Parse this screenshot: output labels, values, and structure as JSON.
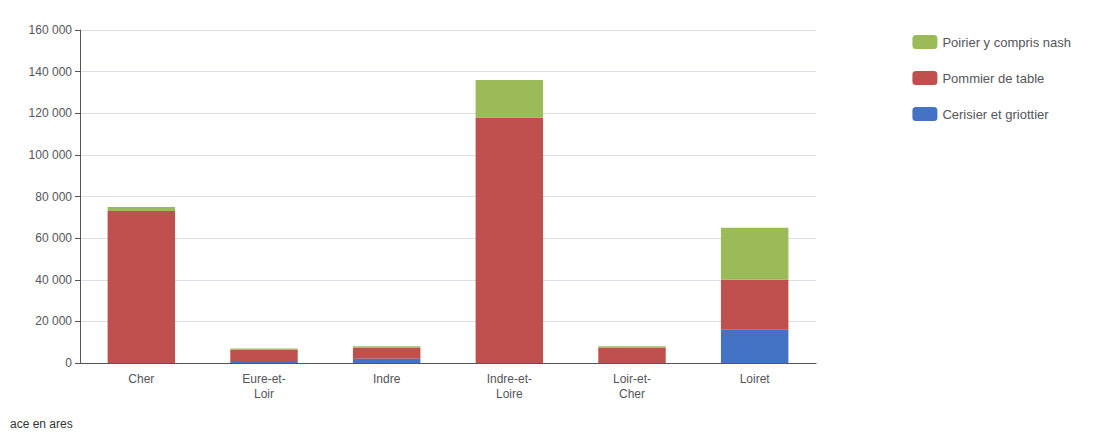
{
  "chart_data": {
    "type": "bar",
    "stacked": true,
    "categories": [
      "Cher",
      "Eure-et-\nLoir",
      "Indre",
      "Indre-et-\nLoire",
      "Loir-et-\nCher",
      "Loiret"
    ],
    "series": [
      {
        "name": "Cerisier et griottier",
        "color": "#4472C4",
        "values": [
          0,
          500,
          2000,
          0,
          0,
          16000
        ]
      },
      {
        "name": "Pommier de table",
        "color": "#C0504D",
        "values": [
          73000,
          6000,
          5500,
          118000,
          7500,
          24000
        ]
      },
      {
        "name": "Poirier y compris nash",
        "color": "#9BBB59",
        "values": [
          2000,
          500,
          500,
          18000,
          500,
          25000
        ]
      }
    ],
    "ylim": [
      0,
      160000
    ],
    "yticks": [
      0,
      {
        "value": 20000,
        "label": "20 000"
      },
      {
        "value": 40000,
        "label": "40 000"
      },
      {
        "value": 60000,
        "label": "60 000"
      },
      {
        "value": 80000,
        "label": "80 000"
      },
      {
        "value": 100000,
        "label": "100 000"
      },
      {
        "value": 120000,
        "label": "120 000"
      },
      {
        "value": 140000,
        "label": "140 000"
      },
      {
        "value": 160000,
        "label": "160 000"
      }
    ],
    "grid": true,
    "legend": "right",
    "annotations": [
      "ace en ares"
    ]
  }
}
